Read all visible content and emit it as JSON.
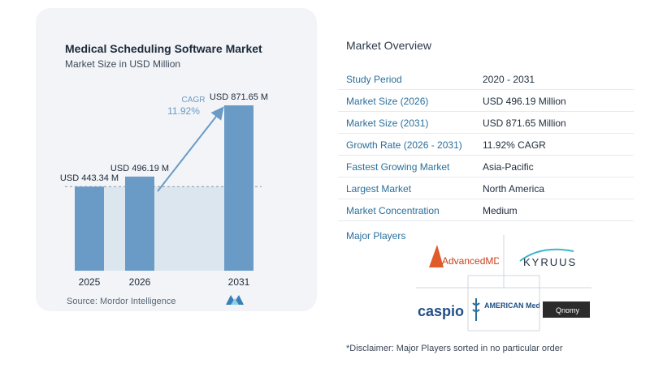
{
  "chart": {
    "title": "Medical Scheduling Software Market",
    "subtitle": "Market Size in USD Million",
    "source": "Source:  Mordor Intelligence",
    "cagr_label": "CAGR",
    "cagr_value": "11.92%",
    "colors": {
      "bar": "#6a9bc6",
      "band": "#dce6ef",
      "arrow": "#6a9bc6",
      "cagr": "#6a9bc6"
    }
  },
  "chart_data": {
    "type": "bar",
    "title": "Medical Scheduling Software Market",
    "subtitle": "Market Size in USD Million",
    "categories": [
      "2025",
      "2026",
      "2031"
    ],
    "values": [
      443.34,
      496.19,
      871.65
    ],
    "data_labels": [
      "USD 443.34 M",
      "USD 496.19 M",
      "USD 871.65 M"
    ],
    "annotation": "CAGR 11.92%",
    "ylim": [
      0,
      900
    ],
    "grid": false
  },
  "overview": {
    "title": "Market Overview",
    "rows": [
      {
        "label": "Study Period",
        "value": "2020 - 2031"
      },
      {
        "label": "Market Size (2026)",
        "value": "USD 496.19 Million"
      },
      {
        "label": "Market Size (2031)",
        "value": "USD 871.65 Million"
      },
      {
        "label": "Growth Rate (2026 - 2031)",
        "value": "11.92% CAGR"
      },
      {
        "label": "Fastest Growing Market",
        "value": "Asia-Pacific"
      },
      {
        "label": "Largest Market",
        "value": "North America"
      },
      {
        "label": "Market Concentration",
        "value": "Medium"
      }
    ],
    "players_title": "Major Players",
    "players": [
      "AdvancedMD",
      "KYRUUS",
      "caspio",
      "AMERICAN Medical Software",
      "Qnomy"
    ],
    "disclaimer": "*Disclaimer: Major Players sorted in no particular order"
  }
}
